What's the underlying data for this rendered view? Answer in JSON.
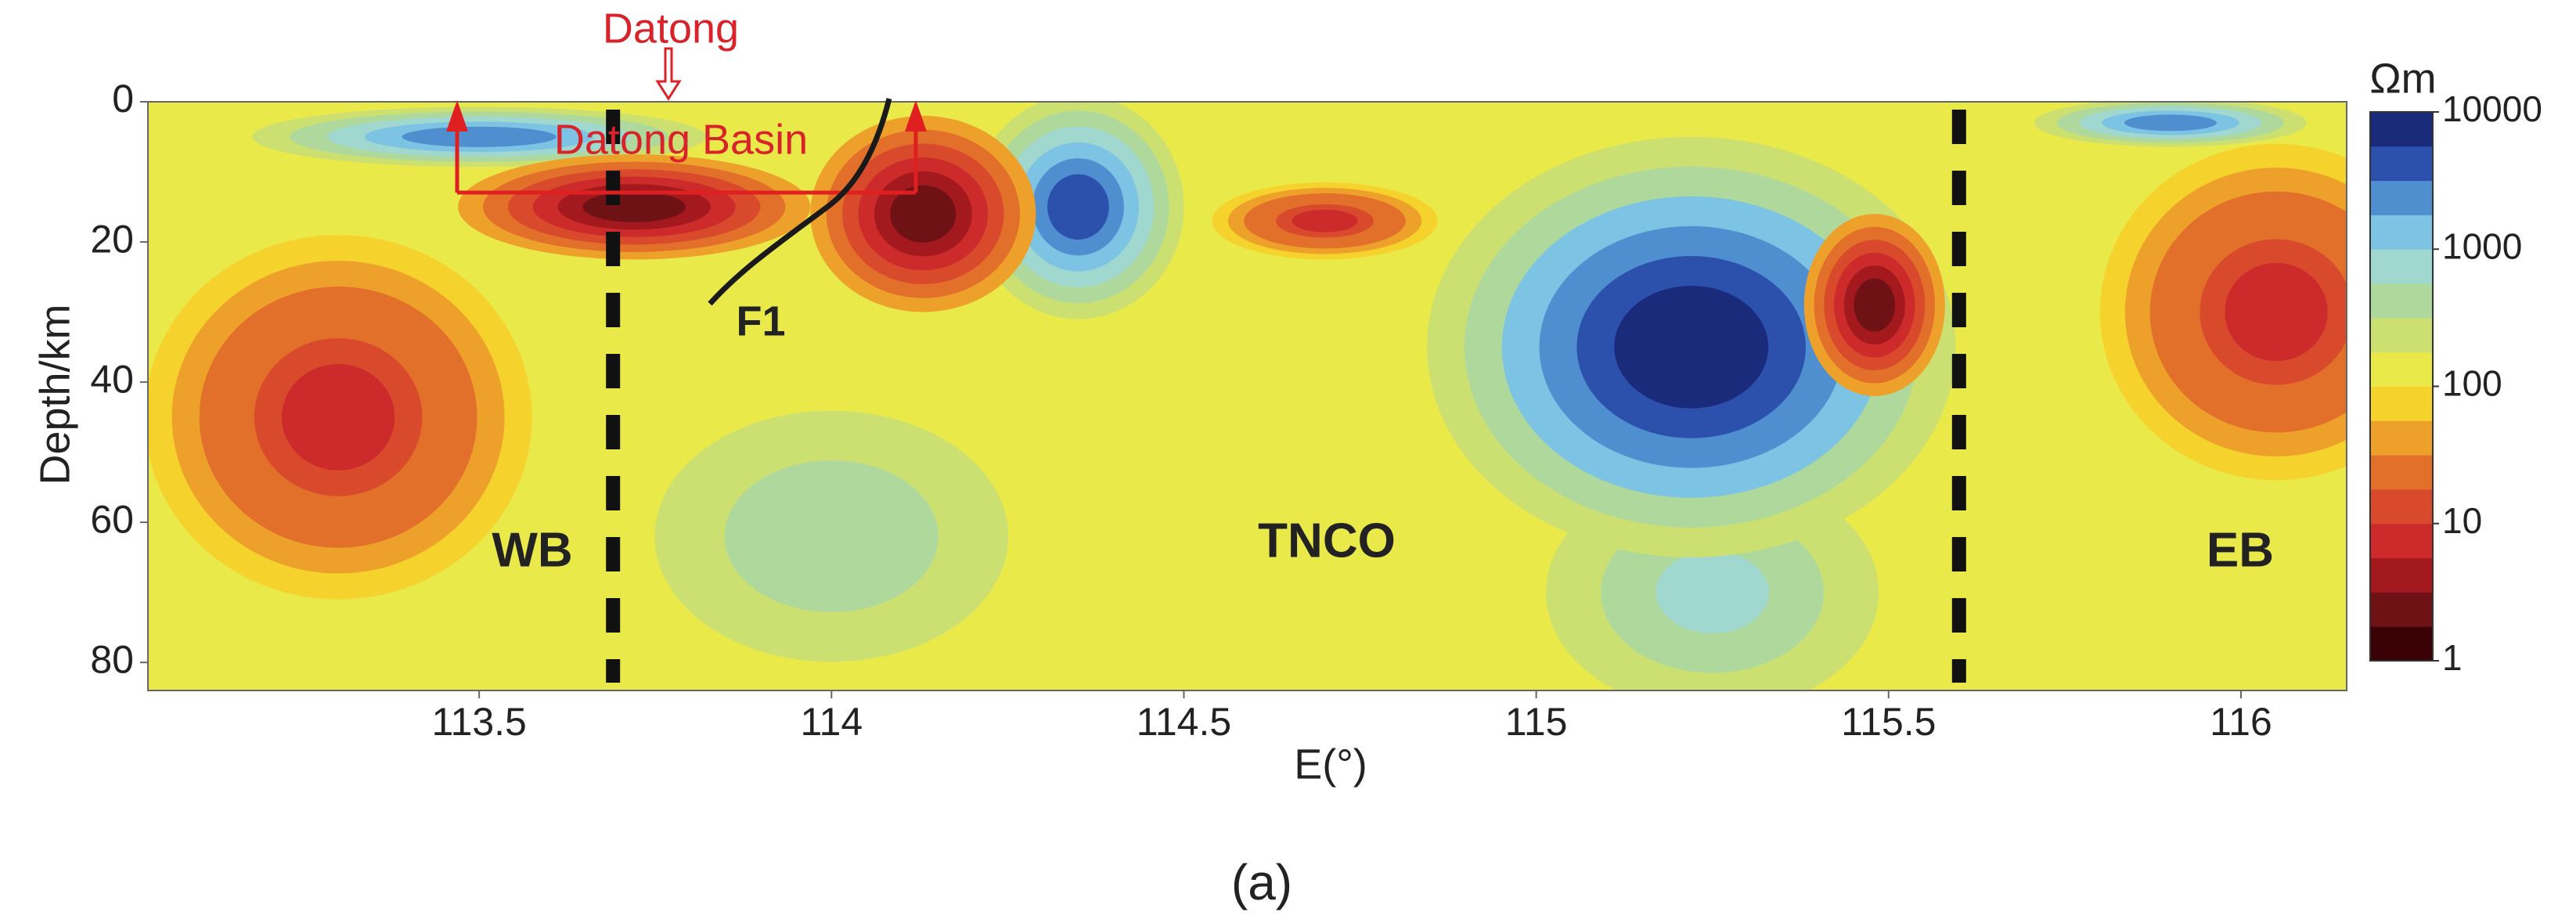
{
  "chart_data": {
    "type": "contour",
    "xlabel": "E(°)",
    "ylabel": "Depth/km",
    "caption": "(a)",
    "xlim": [
      113.03,
      116.15
    ],
    "ylim": [
      0,
      84
    ],
    "xticks": [
      113.5,
      114,
      114.5,
      115,
      115.5,
      116
    ],
    "yticks": [
      0,
      20,
      40,
      60,
      80
    ],
    "colorbar": {
      "label": "Ωm",
      "scale": "log",
      "lim": [
        1,
        10000
      ],
      "ticks": [
        1,
        10,
        100,
        1000,
        10000
      ],
      "colors": [
        "#3a0204",
        "#6e1216",
        "#a3191d",
        "#cc2a2b",
        "#d94a2c",
        "#e2702b",
        "#eea12a",
        "#f6d22d",
        "#eae94a",
        "#cbe070",
        "#afd99c",
        "#a0d7cf",
        "#7cc3e4",
        "#4f8fd0",
        "#2c51ad",
        "#1b2b7c"
      ]
    },
    "background": 100,
    "anomalies": [
      {
        "x": 113.3,
        "depth": 45,
        "value": 8,
        "width": 0.55,
        "height": 52
      },
      {
        "x": 114.0,
        "depth": 62,
        "value": 400,
        "width": 0.7,
        "height": 50
      },
      {
        "x": 115.25,
        "depth": 70,
        "value": 700,
        "width": 0.55,
        "height": 40
      },
      {
        "x": 115.22,
        "depth": 35,
        "value": 10000,
        "width": 0.75,
        "height": 60
      },
      {
        "x": 114.35,
        "depth": 15,
        "value": 5000,
        "width": 0.3,
        "height": 32
      },
      {
        "x": 113.5,
        "depth": 5,
        "value": 3000,
        "width": 0.75,
        "height": 10
      },
      {
        "x": 115.9,
        "depth": 3,
        "value": 2000,
        "width": 0.45,
        "height": 8
      },
      {
        "x": 113.72,
        "depth": 15,
        "value": 2,
        "width": 0.5,
        "height": 15
      },
      {
        "x": 114.13,
        "depth": 16,
        "value": 2,
        "width": 0.32,
        "height": 28
      },
      {
        "x": 114.7,
        "depth": 17,
        "value": 8,
        "width": 0.32,
        "height": 11
      },
      {
        "x": 115.48,
        "depth": 29,
        "value": 2,
        "width": 0.2,
        "height": 26
      },
      {
        "x": 116.05,
        "depth": 30,
        "value": 8,
        "width": 0.5,
        "height": 48
      }
    ],
    "boundaries": [
      113.69,
      115.6
    ],
    "annotations": {
      "city": "Datong",
      "basin": "Datong Basin",
      "fault": "F1",
      "west": "WB",
      "middle": "TNCO",
      "east": "EB"
    }
  }
}
